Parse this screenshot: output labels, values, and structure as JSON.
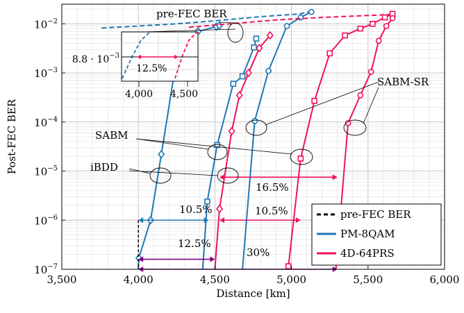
{
  "chart_data": {
    "type": "line",
    "xlabel": "Distance [km]",
    "ylabel": "Post-FEC BER",
    "xlim": [
      3500,
      6000
    ],
    "ylim_log10": [
      -7,
      -1.6
    ],
    "y_scale": "log",
    "grid": true,
    "legend_placement": "bottom-right",
    "x_ticks": [
      {
        "v": 3500,
        "label": "3,500"
      },
      {
        "v": 4000,
        "label": "4,000"
      },
      {
        "v": 4500,
        "label": "4,500"
      },
      {
        "v": 5000,
        "label": "5,000"
      },
      {
        "v": 5500,
        "label": "5,500"
      },
      {
        "v": 6000,
        "label": "6,000"
      }
    ],
    "y_ticks": [
      {
        "exp": -7,
        "base": "10",
        "sup": "−7"
      },
      {
        "exp": -6,
        "base": "10",
        "sup": "−6"
      },
      {
        "exp": -5,
        "base": "10",
        "sup": "−5"
      },
      {
        "exp": -4,
        "base": "10",
        "sup": "−4"
      },
      {
        "exp": -3,
        "base": "10",
        "sup": "−3"
      },
      {
        "exp": -2,
        "base": "10",
        "sup": "−2"
      }
    ],
    "colors": {
      "pm8qam": "#1f77b4",
      "prs": "#f0105a",
      "black": "#000000",
      "purple": "#800080"
    },
    "legend": [
      {
        "label": "pre-FEC BER",
        "color": "#000000",
        "style": "dashed"
      },
      {
        "label": "PM-8QAM",
        "color": "#1f77b4",
        "style": "solid"
      },
      {
        "label": "4D-64PRS",
        "color": "#f0105a",
        "style": "solid"
      }
    ],
    "series": [
      {
        "family": "pm8qam",
        "kind": "pre-FEC",
        "dashed": true,
        "marker": "none",
        "points": [
          [
            3760,
            0.0082
          ],
          [
            4000,
            0.009
          ],
          [
            4250,
            0.01
          ],
          [
            4500,
            0.0115
          ],
          [
            4800,
            0.014
          ],
          [
            5050,
            0.0158
          ],
          [
            5130,
            0.018
          ]
        ]
      },
      {
        "family": "pm8qam",
        "kind": "iBDD",
        "dashed": false,
        "marker": "diamond",
        "points": [
          [
            4000,
            1e-07
          ],
          [
            4003,
            1.7e-07
          ],
          [
            4080,
            1e-06
          ],
          [
            4150,
            2.2e-05
          ],
          [
            4230,
            0.0008
          ],
          [
            4290,
            0.0035
          ],
          [
            4390,
            0.007
          ],
          [
            4510,
            0.0088
          ],
          [
            4530,
            0.0092
          ]
        ]
      },
      {
        "family": "pm8qam",
        "kind": "SABM",
        "dashed": false,
        "marker": "square",
        "points": [
          [
            4420,
            1e-07
          ],
          [
            4450,
            2.4e-06
          ],
          [
            4515,
            3.4e-05
          ],
          [
            4620,
            0.0006
          ],
          [
            4680,
            0.00085
          ],
          [
            4755,
            0.0033
          ],
          [
            4770,
            0.005
          ]
        ]
      },
      {
        "family": "pm8qam",
        "kind": "SABM-SR",
        "dashed": false,
        "marker": "circle",
        "points": [
          [
            4680,
            1e-07
          ],
          [
            4760,
            0.000105
          ],
          [
            4850,
            0.0011
          ],
          [
            4970,
            0.009
          ],
          [
            5060,
            0.0135
          ],
          [
            5130,
            0.0175
          ]
        ]
      },
      {
        "family": "prs",
        "kind": "pre-FEC",
        "dashed": true,
        "marker": "none",
        "points": [
          [
            4330,
            0.0085
          ],
          [
            4600,
            0.01
          ],
          [
            4900,
            0.012
          ],
          [
            5200,
            0.0135
          ],
          [
            5500,
            0.0148
          ],
          [
            5660,
            0.0155
          ]
        ]
      },
      {
        "family": "prs",
        "kind": "iBDD",
        "dashed": false,
        "marker": "diamond",
        "points": [
          [
            4500,
            1e-07
          ],
          [
            4530,
            1.7e-06
          ],
          [
            4610,
            6.5e-05
          ],
          [
            4660,
            0.00035
          ],
          [
            4720,
            0.001
          ],
          [
            4790,
            0.0032
          ],
          [
            4860,
            0.0058
          ]
        ]
      },
      {
        "family": "prs",
        "kind": "SABM",
        "dashed": false,
        "marker": "square",
        "points": [
          [
            4980,
            1.15e-07
          ],
          [
            5060,
            1.8e-05
          ],
          [
            5150,
            0.00027
          ],
          [
            5250,
            0.0025
          ],
          [
            5350,
            0.0058
          ],
          [
            5450,
            0.008
          ],
          [
            5530,
            0.01
          ],
          [
            5610,
            0.0135
          ],
          [
            5660,
            0.016
          ]
        ]
      },
      {
        "family": "prs",
        "kind": "SABM-SR",
        "dashed": false,
        "marker": "circle",
        "points": [
          [
            5290,
            1e-07
          ],
          [
            5370,
            9.5e-05
          ],
          [
            5450,
            0.00035
          ],
          [
            5520,
            0.00105
          ],
          [
            5570,
            0.0045
          ],
          [
            5620,
            0.009
          ],
          [
            5660,
            0.013
          ]
        ]
      }
    ],
    "annotations": {
      "pre_fec_label": "pre-FEC BER",
      "sabm_sr_label": "SABM-SR",
      "sabm_label": "SABM",
      "ibdd_label": "iBDD",
      "pct_blue_105": "10.5%",
      "pct_blue_125": "12.5%",
      "pct_red_165": "16.5%",
      "pct_red_105": "10.5%",
      "pct_purple_30": "30%",
      "inset_threshold": "8.8 · 10",
      "inset_threshold_sup": "−3",
      "inset_pct": "12.5%",
      "inset_x1": "4,000",
      "inset_x2": "4,500"
    }
  }
}
